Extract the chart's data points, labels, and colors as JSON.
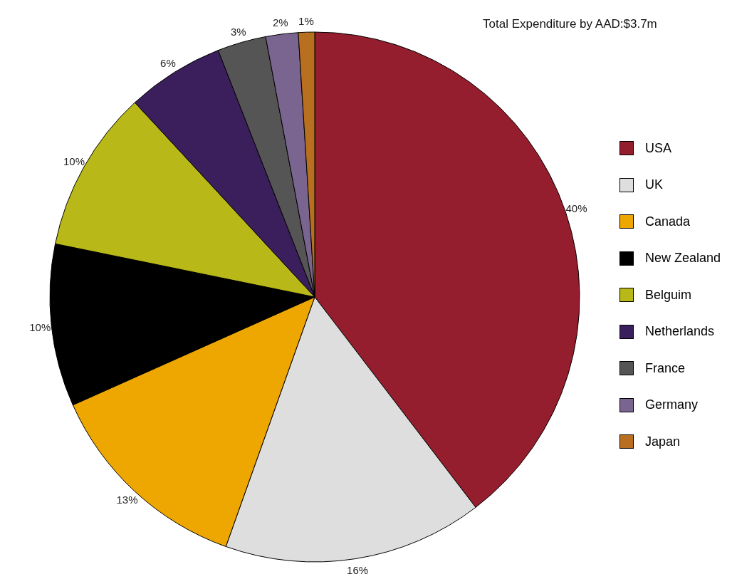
{
  "chart_data": {
    "type": "pie",
    "title": "Total Expenditure by AAD:$3.7m",
    "categories": [
      "USA",
      "UK",
      "Canada",
      "New Zealand",
      "Belguim",
      "Netherlands",
      "France",
      "Germany",
      "Japan"
    ],
    "values": [
      40,
      16,
      13,
      10,
      10,
      6,
      3,
      2,
      1
    ],
    "value_labels": [
      "40%",
      "16%",
      "13%",
      "10%",
      "10%",
      "6%",
      "3%",
      "2%",
      "1%"
    ],
    "colors": [
      "#941e2d",
      "#dedede",
      "#eea600",
      "#000000",
      "#b8b818",
      "#3b1f5c",
      "#555555",
      "#7a6490",
      "#b87020"
    ],
    "legend": "right"
  }
}
